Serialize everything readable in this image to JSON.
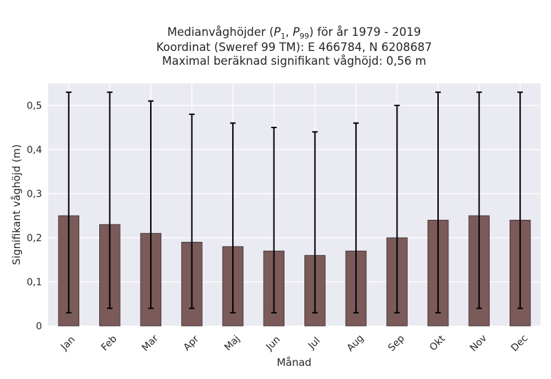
{
  "title": {
    "line1_prefix": "Medianvåghöjder (",
    "p1_base": "P",
    "p1_sub": "1",
    "separator": ", ",
    "p99_base": "P",
    "p99_sub": "99",
    "line1_suffix": ") för år 1979 - 2019",
    "line2": "Koordinat (Sweref 99 TM): E 466784, N 6208687",
    "line3": "Maximal beräknad signifikant våghöjd: 0,56 m"
  },
  "colors": {
    "plot_background": "#eaeaf2",
    "grid": "#ffffff",
    "bar_fill": "#7b5a5a",
    "bar_edge": "#3a2e2e",
    "errorbar": "#000000"
  },
  "chart_data": {
    "type": "bar",
    "categories": [
      "Jan",
      "Feb",
      "Mar",
      "Apr",
      "Maj",
      "Jun",
      "Jul",
      "Aug",
      "Sep",
      "Okt",
      "Nov",
      "Dec"
    ],
    "values": [
      0.25,
      0.23,
      0.21,
      0.19,
      0.18,
      0.17,
      0.16,
      0.17,
      0.2,
      0.24,
      0.25,
      0.24
    ],
    "lower": [
      0.03,
      0.04,
      0.04,
      0.04,
      0.03,
      0.03,
      0.03,
      0.03,
      0.03,
      0.03,
      0.04,
      0.04
    ],
    "upper": [
      0.53,
      0.53,
      0.51,
      0.48,
      0.46,
      0.45,
      0.44,
      0.46,
      0.5,
      0.53,
      0.53,
      0.53
    ],
    "xlabel": "Månad",
    "ylabel": "Signifikant våghöjd (m)",
    "ylim": [
      0,
      0.55
    ],
    "yticks": [
      0,
      0.1,
      0.2,
      0.3,
      0.4,
      0.5
    ],
    "ytick_labels": [
      "0",
      "0,1",
      "0,2",
      "0,3",
      "0,4",
      "0,5"
    ],
    "grid": true,
    "legend": false
  }
}
